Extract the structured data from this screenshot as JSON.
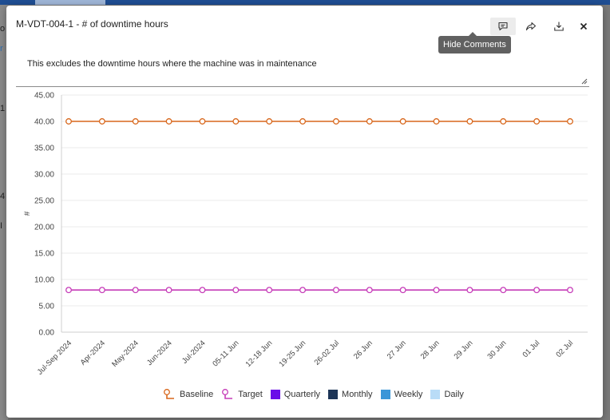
{
  "dialog": {
    "title": "M-VDT-004-1 - # of downtime hours",
    "tooltip": "Hide Comments",
    "comment": "This excludes the downtime hours where the machine was in maintenance"
  },
  "background": {
    "letters": [
      "o",
      "r",
      "1",
      "4",
      "I"
    ]
  },
  "colors": {
    "baseline": "#d8671c",
    "target": "#c63cb8",
    "quarterly": "#6a0de8",
    "monthly": "#1d3557",
    "weekly": "#3a96d8",
    "daily": "#b9dcf7"
  },
  "chart_data": {
    "type": "line",
    "ylabel": "#",
    "xlabel": "",
    "ylim": [
      0,
      45
    ],
    "yticks": [
      "0.00",
      "5.00",
      "10.00",
      "15.00",
      "20.00",
      "25.00",
      "30.00",
      "35.00",
      "40.00",
      "45.00"
    ],
    "categories": [
      "Jul-Sep 2024",
      "Apr-2024",
      "May-2024",
      "Jun-2024",
      "Jul-2024",
      "05-11 Jun",
      "12-18 Jun",
      "19-25 Jun",
      "26-02 Jul",
      "26 Jun",
      "27 Jun",
      "28 Jun",
      "29 Jun",
      "30 Jun",
      "01 Jul",
      "02 Jul"
    ],
    "series": [
      {
        "name": "Baseline",
        "values": [
          40,
          40,
          40,
          40,
          40,
          40,
          40,
          40,
          40,
          40,
          40,
          40,
          40,
          40,
          40,
          40
        ]
      },
      {
        "name": "Target",
        "values": [
          8,
          8,
          8,
          8,
          8,
          8,
          8,
          8,
          8,
          8,
          8,
          8,
          8,
          8,
          8,
          8
        ]
      }
    ],
    "legend": [
      "Baseline",
      "Target",
      "Quarterly",
      "Monthly",
      "Weekly",
      "Daily"
    ]
  }
}
